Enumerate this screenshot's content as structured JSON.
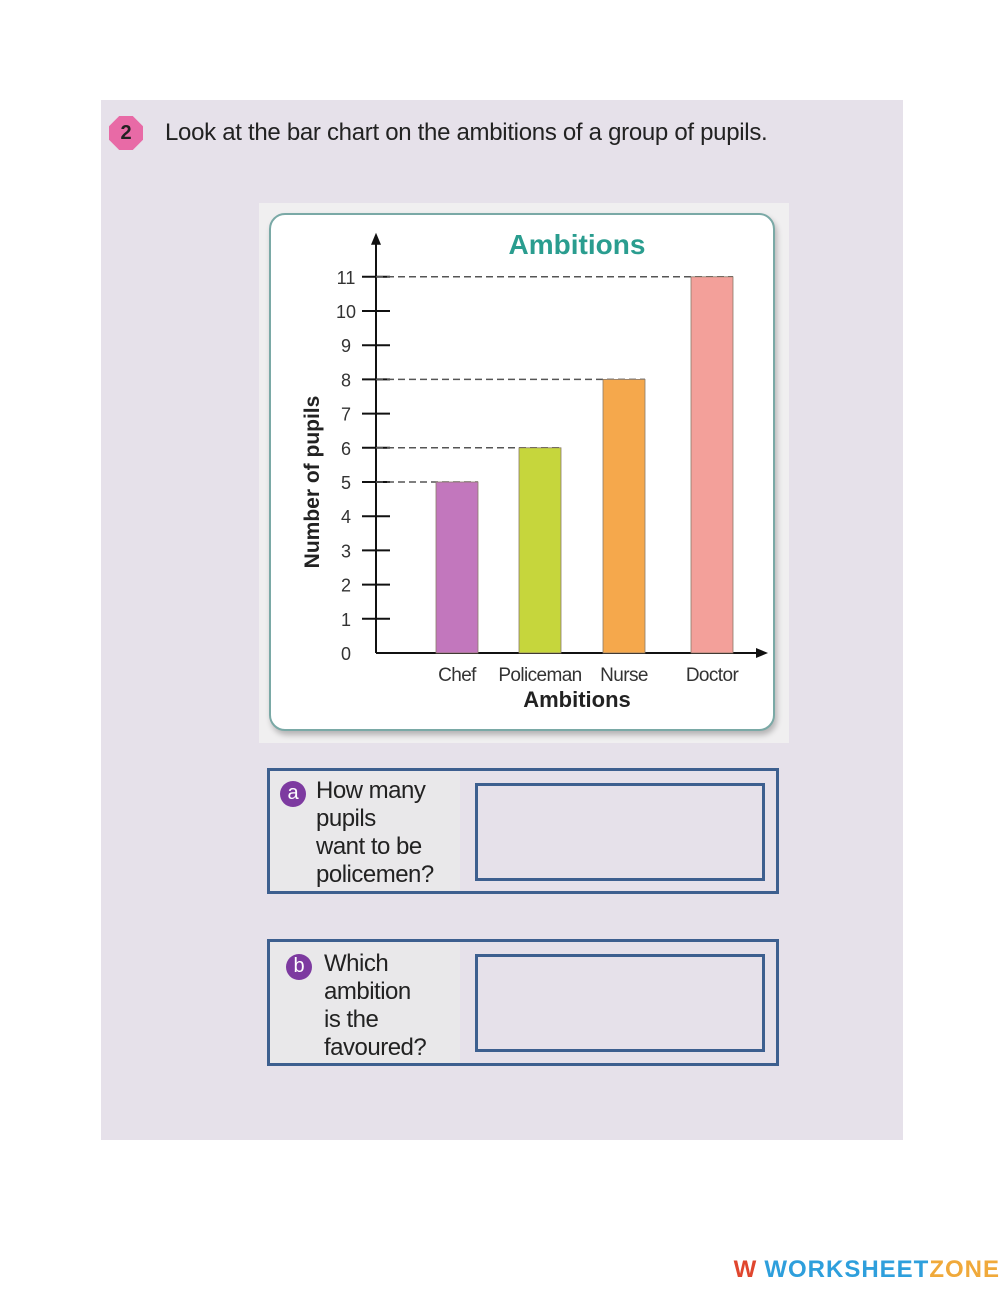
{
  "question": {
    "number": "2",
    "text": "Look at the bar chart on the ambitions of a group of pupils."
  },
  "chart_data": {
    "type": "bar",
    "title": "Ambitions",
    "xlabel": "Ambitions",
    "ylabel": "Number of pupils",
    "categories": [
      "Chef",
      "Policeman",
      "Nurse",
      "Doctor"
    ],
    "values": [
      5,
      6,
      8,
      11
    ],
    "colors": [
      "#c277bd",
      "#c6d63c",
      "#f5a84c",
      "#f3a09a"
    ],
    "yticks": [
      0,
      1,
      2,
      3,
      4,
      5,
      6,
      7,
      8,
      9,
      10,
      11
    ],
    "ylim": [
      0,
      11
    ],
    "grid": "dashed guide lines at bar tops",
    "legend": "none"
  },
  "subquestions": [
    {
      "label": "a",
      "text_lines": [
        "How many",
        "pupils",
        "want to be",
        "policemen?"
      ],
      "answer": ""
    },
    {
      "label": "b",
      "text_lines": [
        "Which",
        "ambition",
        "is the",
        "favoured?"
      ],
      "answer": ""
    }
  ],
  "brand": {
    "mark": "W",
    "name_part1": "WORKSHEET",
    "name_part2": "ZONE"
  }
}
